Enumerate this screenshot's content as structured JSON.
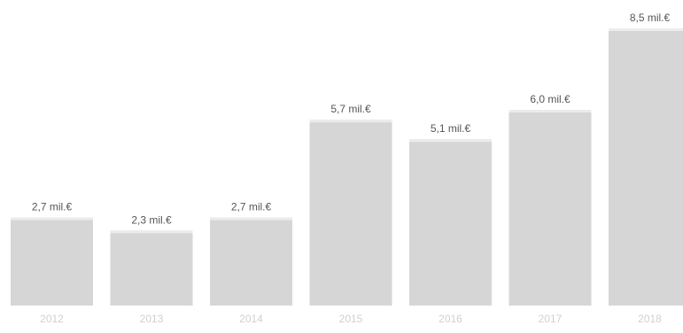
{
  "chart_data": {
    "type": "bar",
    "categories": [
      "2012",
      "2013",
      "2014",
      "2015",
      "2016",
      "2017",
      "2018"
    ],
    "values": [
      2.7,
      2.3,
      2.7,
      5.7,
      5.1,
      6.0,
      8.5
    ],
    "data_labels": [
      "2,7 mil.€",
      "2,3 mil.€",
      "2,7 mil.€",
      "5,7 mil.€",
      "5,1 mil.€",
      "6,0 mil.€",
      "8,5 mil.€"
    ],
    "title": "",
    "xlabel": "",
    "ylabel": "",
    "ylim": [
      0,
      8.5
    ],
    "grid": false,
    "legend": "none",
    "colors": {
      "bar": "#d6d6d6",
      "bar_top": "#ececec",
      "data_label": "#555555",
      "tick_label": "#d0d0d0"
    }
  }
}
